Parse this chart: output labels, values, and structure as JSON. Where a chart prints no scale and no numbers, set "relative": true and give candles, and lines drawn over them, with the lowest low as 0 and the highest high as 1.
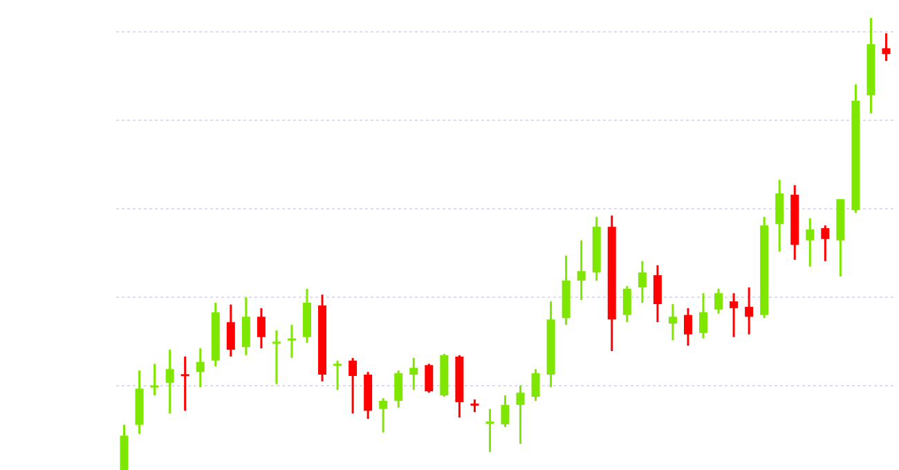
{
  "chart_data": {
    "type": "candlestick",
    "relative": true,
    "grid": "y",
    "categories": [
      null,
      null,
      null,
      null,
      null,
      null,
      null,
      null,
      null,
      null,
      null,
      null,
      null,
      null,
      null,
      null,
      null,
      null,
      null,
      null,
      null,
      null,
      null,
      null,
      null,
      null,
      null,
      null,
      null,
      null,
      null,
      null,
      null,
      null,
      null,
      null,
      null,
      null,
      null,
      null,
      null,
      null,
      null,
      null,
      null,
      null,
      null,
      null,
      null,
      null,
      null
    ],
    "ohlc": [
      [
        0,
        0.1,
        0,
        0.076
      ],
      [
        0.1,
        0.22,
        0.08,
        0.18
      ],
      [
        0.185,
        0.235,
        0.165,
        0.187
      ],
      [
        0.193,
        0.266,
        0.125,
        0.223
      ],
      [
        0.212,
        0.251,
        0.131,
        0.208
      ],
      [
        0.217,
        0.269,
        0.183,
        0.239
      ],
      [
        0.242,
        0.37,
        0.229,
        0.349
      ],
      [
        0.327,
        0.366,
        0.251,
        0.266
      ],
      [
        0.272,
        0.382,
        0.254,
        0.339
      ],
      [
        0.339,
        0.358,
        0.269,
        0.294
      ],
      [
        0.283,
        0.309,
        0.19,
        0.284
      ],
      [
        0.289,
        0.321,
        0.248,
        0.291
      ],
      [
        0.294,
        0.401,
        0.281,
        0.37
      ],
      [
        0.364,
        0.388,
        0.196,
        0.211
      ],
      [
        0.232,
        0.242,
        0.177,
        0.235
      ],
      [
        0.242,
        0.248,
        0.125,
        0.208
      ],
      [
        0.211,
        0.217,
        0.113,
        0.131
      ],
      [
        0.135,
        0.159,
        0.083,
        0.153
      ],
      [
        0.153,
        0.22,
        0.138,
        0.214
      ],
      [
        0.211,
        0.248,
        0.177,
        0.226
      ],
      [
        0.232,
        0.235,
        0.171,
        0.174
      ],
      [
        0.165,
        0.257,
        0.162,
        0.254
      ],
      [
        0.251,
        0.254,
        0.116,
        0.15
      ],
      [
        0.147,
        0.156,
        0.128,
        0.144
      ],
      [
        0.106,
        0.135,
        0.04,
        0.107
      ],
      [
        0.101,
        0.165,
        0.095,
        0.144
      ],
      [
        0.144,
        0.187,
        0.058,
        0.171
      ],
      [
        0.162,
        0.223,
        0.153,
        0.214
      ],
      [
        0.211,
        0.373,
        0.183,
        0.333
      ],
      [
        0.336,
        0.474,
        0.321,
        0.419
      ],
      [
        0.419,
        0.508,
        0.376,
        0.44
      ],
      [
        0.437,
        0.56,
        0.419,
        0.538
      ],
      [
        0.538,
        0.563,
        0.263,
        0.333
      ],
      [
        0.343,
        0.407,
        0.327,
        0.401
      ],
      [
        0.404,
        0.462,
        0.37,
        0.437
      ],
      [
        0.431,
        0.453,
        0.327,
        0.367
      ],
      [
        0.324,
        0.367,
        0.287,
        0.339
      ],
      [
        0.343,
        0.358,
        0.275,
        0.3
      ],
      [
        0.303,
        0.391,
        0.291,
        0.349
      ],
      [
        0.355,
        0.401,
        0.346,
        0.391
      ],
      [
        0.373,
        0.391,
        0.294,
        0.358
      ],
      [
        0.361,
        0.404,
        0.3,
        0.339
      ],
      [
        0.343,
        0.56,
        0.336,
        0.541
      ],
      [
        0.544,
        0.642,
        0.483,
        0.612
      ],
      [
        0.609,
        0.63,
        0.465,
        0.498
      ],
      [
        0.508,
        0.557,
        0.45,
        0.532
      ],
      [
        0.535,
        0.541,
        0.462,
        0.511
      ],
      [
        0.508,
        0.599,
        0.428,
        0.599
      ],
      [
        0.575,
        0.853,
        0.569,
        0.817
      ],
      [
        0.829,
        1,
        0.789,
        0.942
      ],
      [
        0.933,
        0.966,
        0.905,
        0.92
      ]
    ],
    "colors": [
      "#7fe600",
      "#7fe600",
      "#7fe600",
      "#7fe600",
      "#ff0000",
      "#7fe600",
      "#7fe600",
      "#ff0000",
      "#7fe600",
      "#ff0000",
      "#7fe600",
      "#7fe600",
      "#7fe600",
      "#ff0000",
      "#7fe600",
      "#ff0000",
      "#ff0000",
      "#7fe600",
      "#7fe600",
      "#7fe600",
      "#ff0000",
      "#7fe600",
      "#ff0000",
      "#ff0000",
      "#7fe600",
      "#7fe600",
      "#7fe600",
      "#7fe600",
      "#7fe600",
      "#7fe600",
      "#7fe600",
      "#7fe600",
      "#ff0000",
      "#7fe600",
      "#7fe600",
      "#ff0000",
      "#7fe600",
      "#ff0000",
      "#7fe600",
      "#7fe600",
      "#ff0000",
      "#ff0000",
      "#7fe600",
      "#7fe600",
      "#ff0000",
      "#7fe600",
      "#ff0000",
      "#7fe600",
      "#7fe600",
      "#7fe600",
      "#ff0000"
    ]
  }
}
